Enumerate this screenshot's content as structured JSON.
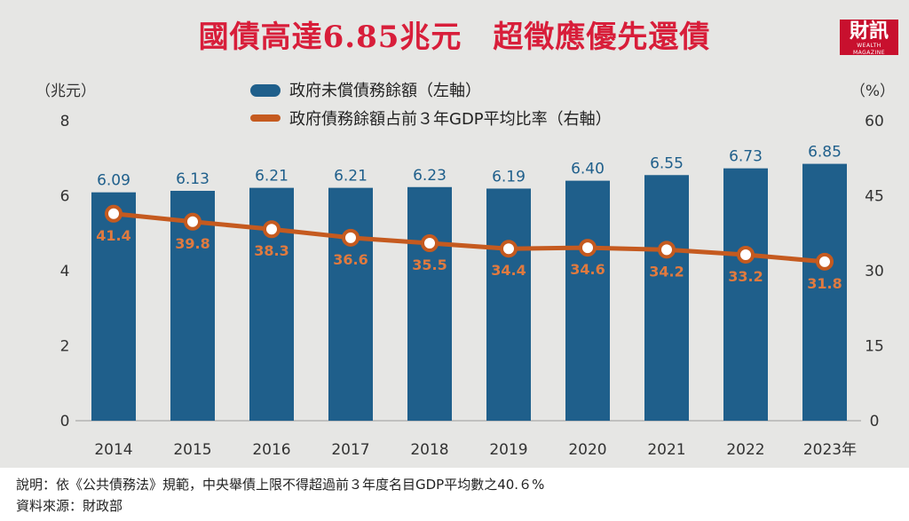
{
  "title": "國債高達6.85兆元　超徵應優先還債",
  "logo": {
    "main": "財訊",
    "sub": "WEALTH MAGAZINE"
  },
  "colors": {
    "bar": "#1f5f8b",
    "line": "#c55a1f",
    "title": "#d81e3a",
    "marker_fill": "#ffffff",
    "line_label": "#e07a3f",
    "bar_label": "#1f5f8b",
    "panel": "#e6e6e4"
  },
  "chart_data": {
    "type": "bar+line",
    "categories": [
      "2014",
      "2015",
      "2016",
      "2017",
      "2018",
      "2019",
      "2020",
      "2021",
      "2022",
      "2023年"
    ],
    "series": [
      {
        "name": "政府未償債務餘額（左軸）",
        "type": "bar",
        "axis": "left",
        "values": [
          6.09,
          6.13,
          6.21,
          6.21,
          6.23,
          6.19,
          6.4,
          6.55,
          6.73,
          6.85
        ],
        "labels": [
          "6.09",
          "6.13",
          "6.21",
          "6.21",
          "6.23",
          "6.19",
          "6.40",
          "6.55",
          "6.73",
          "6.85"
        ]
      },
      {
        "name": "政府債務餘額占前３年GDP平均比率（右軸）",
        "type": "line",
        "axis": "right",
        "values": [
          41.4,
          39.8,
          38.3,
          36.6,
          35.5,
          34.4,
          34.6,
          34.2,
          33.2,
          31.8
        ],
        "labels": [
          "41.4",
          "39.8",
          "38.3",
          "36.6",
          "35.5",
          "34.4",
          "34.6",
          "34.2",
          "33.2",
          "31.8"
        ]
      }
    ],
    "left_axis": {
      "unit_label": "（兆元）",
      "ticks": [
        "0",
        "2",
        "4",
        "6",
        "8"
      ],
      "range": [
        0,
        8
      ]
    },
    "right_axis": {
      "unit_label": "（%）",
      "ticks": [
        "0",
        "15",
        "30",
        "45",
        "60"
      ],
      "range": [
        0,
        60
      ]
    },
    "legend": [
      "政府未償債務餘額（左軸）",
      "政府債務餘額占前３年GDP平均比率（右軸）"
    ]
  },
  "notes": {
    "line1": "說明：依《公共債務法》規範，中央舉債上限不得超過前３年度名目GDP平均數之40.６%",
    "line2": "資料來源：財政部"
  }
}
